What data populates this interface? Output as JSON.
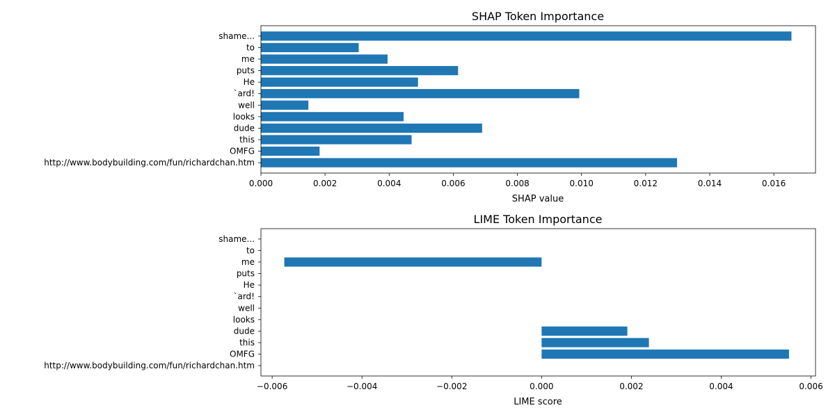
{
  "chart_data": [
    {
      "type": "bar",
      "orientation": "horizontal",
      "title": "SHAP Token Importance",
      "xlabel": "SHAP value",
      "ylabel": "",
      "xlim": [
        0,
        0.0173
      ],
      "xticks": [
        0,
        0.002,
        0.004,
        0.006,
        0.008,
        0.01,
        0.012,
        0.014,
        0.016
      ],
      "xtick_labels": [
        "0.000",
        "0.002",
        "0.004",
        "0.006",
        "0.008",
        "0.010",
        "0.012",
        "0.014",
        "0.016"
      ],
      "categories": [
        "shame...",
        "to",
        "me",
        "puts",
        "He",
        "`ard!",
        "well",
        "looks",
        "dude",
        "this",
        "OMFG",
        "http://www.bodybuilding.com/fun/richardchan.htm"
      ],
      "values": [
        0.01655,
        0.00305,
        0.00395,
        0.00615,
        0.0049,
        0.00993,
        0.00148,
        0.00445,
        0.0069,
        0.0047,
        0.00183,
        0.01298
      ],
      "color": "#1f77b4",
      "grid": false
    },
    {
      "type": "bar",
      "orientation": "horizontal",
      "title": "LIME Token Importance",
      "xlabel": "LIME score",
      "ylabel": "",
      "xlim": [
        -0.00625,
        0.0061
      ],
      "xticks": [
        -0.006,
        -0.004,
        -0.002,
        0,
        0.002,
        0.004,
        0.006
      ],
      "xtick_labels": [
        "−0.006",
        "−0.004",
        "−0.002",
        "0.000",
        "0.002",
        "0.004",
        "0.006"
      ],
      "categories": [
        "shame...",
        "to",
        "me",
        "puts",
        "He",
        "`ard!",
        "well",
        "looks",
        "dude",
        "this",
        "OMFG",
        "http://www.bodybuilding.com/fun/richardchan.htm"
      ],
      "values": [
        0,
        0,
        -0.00573,
        0,
        0,
        0,
        0,
        0,
        0.00191,
        0.00239,
        0.00551,
        0
      ],
      "color": "#1f77b4",
      "grid": false
    }
  ]
}
